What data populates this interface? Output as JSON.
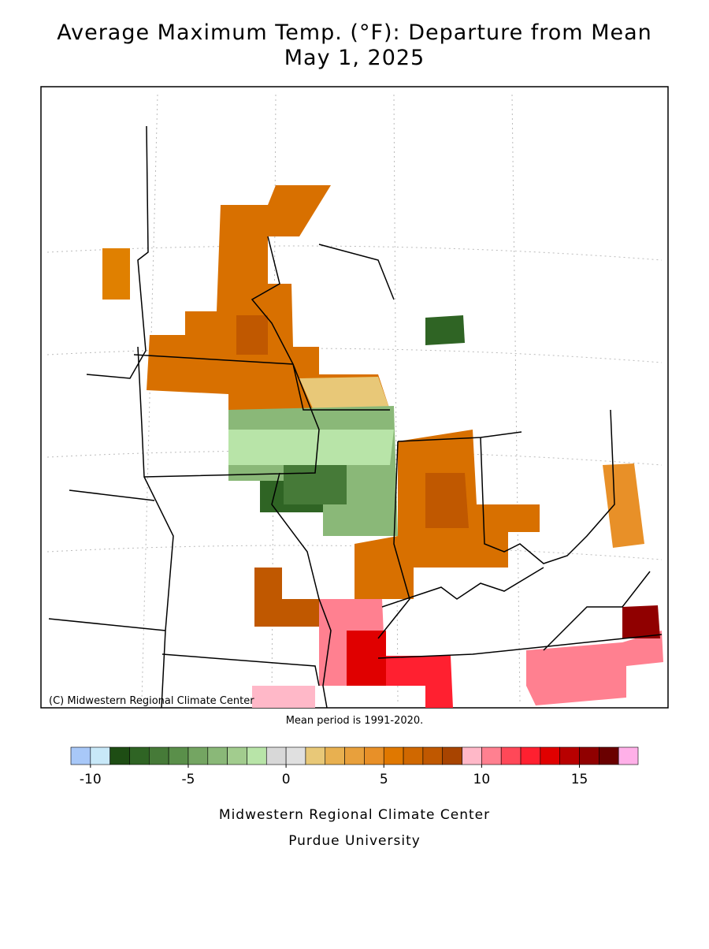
{
  "header": {
    "title": "Average Maximum Temp. (°F): Departure from Mean",
    "date": "May 1, 2025"
  },
  "map": {
    "credit": "(C) Midwestern Regional Climate Center",
    "note": "Mean period is 1991-2020."
  },
  "colorbar": {
    "range": [
      -11,
      18
    ],
    "ticks": [
      -10,
      -5,
      0,
      5,
      10,
      15
    ],
    "colors": [
      "#a8c8f8",
      "#c8e8f8",
      "#1e4d14",
      "#2f6424",
      "#467a38",
      "#5a8f4a",
      "#74a562",
      "#8ab878",
      "#a2cc8e",
      "#b8e4a8",
      "#d8d8d8",
      "#e0e0e0",
      "#e8c878",
      "#e8b050",
      "#e8a03c",
      "#e89028",
      "#e07800",
      "#d06800",
      "#c05800",
      "#a84400",
      "#ffb8c8",
      "#ff8090",
      "#ff4858",
      "#ff2030",
      "#e00000",
      "#b80000",
      "#900000",
      "#6a0000",
      "#ffb0e8"
    ]
  },
  "footer": {
    "line1": "Midwestern Regional Climate Center",
    "line2": "Purdue University"
  }
}
